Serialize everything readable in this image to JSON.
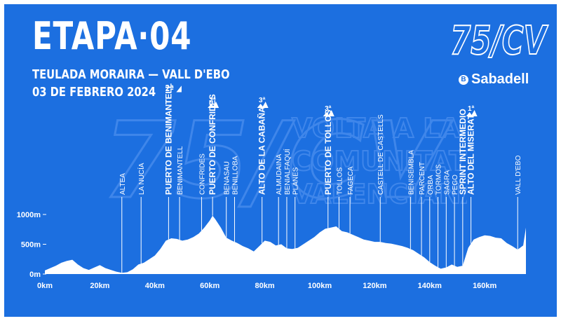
{
  "header": {
    "title": "ETAPA·04",
    "route": "TEULADA MORAIRA — VALL D'EBO",
    "date": "03 DE FEBRERO 2024",
    "date_badge": "2ª"
  },
  "branding": {
    "logo": "75/CV",
    "sponsor": "Sabadell",
    "sponsor_mark": "B",
    "watermark_lines": [
      "VOLTA A LA",
      "COMUNITAT",
      "VALENCIANA"
    ]
  },
  "colors": {
    "background": "#1c6fe0",
    "profile": "#ffffff"
  },
  "chart_data": {
    "type": "area",
    "title": "",
    "xlabel": "",
    "ylabel": "",
    "xlim": [
      0,
      175
    ],
    "ylim": [
      0,
      1000
    ],
    "x_ticks": [
      {
        "value": 0,
        "label": "0km"
      },
      {
        "value": 20,
        "label": "20km"
      },
      {
        "value": 40,
        "label": "40km"
      },
      {
        "value": 60,
        "label": "60km"
      },
      {
        "value": 80,
        "label": "80km"
      },
      {
        "value": 100,
        "label": "100km"
      },
      {
        "value": 120,
        "label": "120km"
      },
      {
        "value": 140,
        "label": "140km"
      },
      {
        "value": 160,
        "label": "160km"
      }
    ],
    "y_ticks": [
      {
        "value": 0,
        "label": "0m"
      },
      {
        "value": 500,
        "label": "500m"
      },
      {
        "value": 1000,
        "label": "1000m"
      }
    ],
    "profile": {
      "x": [
        0,
        2,
        4,
        6,
        8,
        10,
        12,
        14,
        16,
        18,
        20,
        22,
        24,
        26,
        28,
        30,
        32,
        34,
        36,
        38,
        40,
        42,
        44,
        46,
        48,
        50,
        52,
        54,
        56,
        58,
        60,
        61,
        62,
        64,
        66,
        68,
        70,
        72,
        74,
        76,
        78,
        80,
        82,
        84,
        86,
        88,
        90,
        92,
        94,
        96,
        98,
        100,
        102,
        104,
        106,
        107,
        108,
        110,
        112,
        114,
        116,
        118,
        120,
        122,
        124,
        126,
        128,
        130,
        132,
        134,
        136,
        138,
        140,
        142,
        144,
        146,
        148,
        150,
        152,
        154,
        156,
        158,
        160,
        162,
        164,
        166,
        168,
        170,
        172,
        174,
        175
      ],
      "y": [
        60,
        100,
        140,
        190,
        220,
        240,
        160,
        100,
        70,
        110,
        150,
        100,
        70,
        40,
        20,
        30,
        80,
        160,
        190,
        250,
        310,
        420,
        560,
        600,
        590,
        560,
        580,
        620,
        680,
        780,
        900,
        980,
        920,
        780,
        610,
        560,
        520,
        470,
        430,
        380,
        470,
        560,
        540,
        480,
        500,
        430,
        420,
        440,
        500,
        560,
        620,
        700,
        760,
        780,
        800,
        760,
        720,
        700,
        660,
        620,
        580,
        560,
        540,
        540,
        520,
        510,
        490,
        470,
        440,
        400,
        340,
        280,
        200,
        140,
        90,
        110,
        160,
        120,
        140,
        440,
        580,
        620,
        650,
        640,
        610,
        600,
        520,
        470,
        410,
        480,
        780
      ]
    },
    "places": [
      {
        "km": 28,
        "name": "ALTEA"
      },
      {
        "km": 35,
        "name": "LA NUCÍA"
      },
      {
        "km": 45,
        "name": "PUERTO DE BENIMANTELL",
        "climb": true
      },
      {
        "km": 49,
        "name": "BENIMANTELL"
      },
      {
        "km": 57,
        "name": "CONFRIDES"
      },
      {
        "km": 61,
        "name": "PUERTO DE CONFRIDES",
        "climb": true,
        "category": "2ª"
      },
      {
        "km": 66,
        "name": "BENASAU"
      },
      {
        "km": 69,
        "name": "BENILLOBA"
      },
      {
        "km": 79,
        "name": "ALTO DE LA CABAÑA",
        "climb": true,
        "category": "3ª"
      },
      {
        "km": 85,
        "name": "ALMUDAINA"
      },
      {
        "km": 88,
        "name": "BENIALFAQUÍ"
      },
      {
        "km": 91,
        "name": "PLANES"
      },
      {
        "km": 103,
        "name": "PUERTO DE TOLLOS",
        "climb": true,
        "category": "3ª"
      },
      {
        "km": 107,
        "name": "TOLLOS"
      },
      {
        "km": 111,
        "name": "FAGECA"
      },
      {
        "km": 122,
        "name": "CASTELL DE CASTELLS"
      },
      {
        "km": 133,
        "name": "BENISEMBLA"
      },
      {
        "km": 137,
        "name": "PARCENT"
      },
      {
        "km": 140,
        "name": "ORBA"
      },
      {
        "km": 143,
        "name": "TORMOS"
      },
      {
        "km": 146,
        "name": "SAGRA"
      },
      {
        "km": 149,
        "name": "PEGO"
      },
      {
        "km": 152,
        "name": "SPRINT INTERMEDIO",
        "climb": true
      },
      {
        "km": 155,
        "name": "ALTO DEL MISERAT",
        "climb": true,
        "category": "1ª"
      },
      {
        "km": 172,
        "name": "VALL D'EBO"
      }
    ]
  }
}
